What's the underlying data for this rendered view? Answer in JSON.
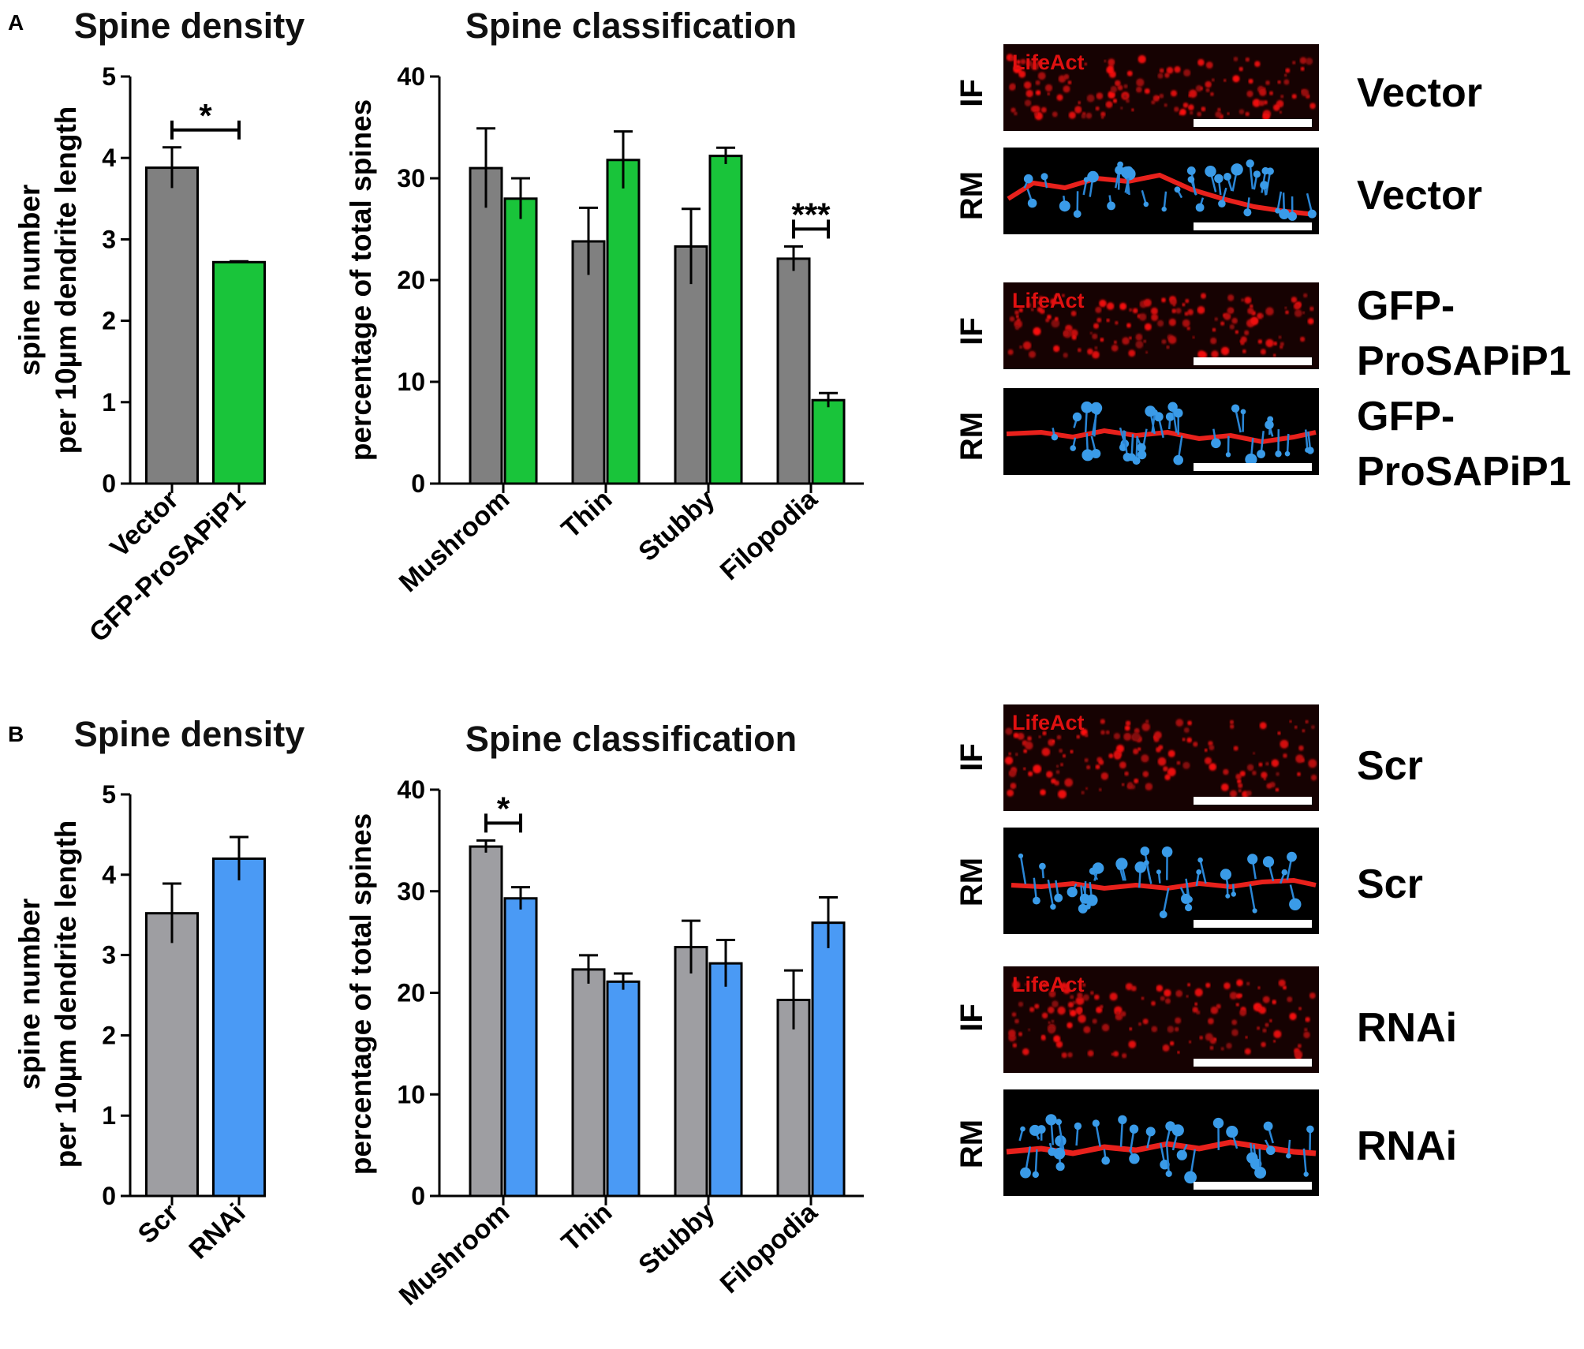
{
  "chart_data": [
    {
      "panel": "A",
      "type": "bar",
      "title": "Spine density",
      "xlabel": "",
      "ylabel": "spine number per 10µm dendrite length",
      "ylabel_lines": [
        "spine number",
        "per 10µm dendrite length"
      ],
      "ylim": [
        0,
        5
      ],
      "yticks": [
        "0",
        "1",
        "2",
        "3",
        "4",
        "5"
      ],
      "categories": [
        "Vector",
        "GFP-ProSAPiP1"
      ],
      "values": [
        3.88,
        2.72
      ],
      "errors": [
        0.25,
        0.01
      ],
      "colors": [
        "#808080",
        "#19c43a"
      ],
      "significance": [
        {
          "from": 0,
          "to": 1,
          "label": "*"
        }
      ]
    },
    {
      "panel": "A",
      "type": "bar",
      "title": "Spine classification",
      "xlabel": "",
      "ylabel": "percentage of total spines",
      "ylim": [
        0,
        40
      ],
      "yticks": [
        "0",
        "10",
        "20",
        "30",
        "40"
      ],
      "categories": [
        "Mushroom",
        "Thin",
        "Stubby",
        "Filopodia"
      ],
      "series": [
        {
          "name": "Vector",
          "values": [
            31.0,
            23.8,
            23.3,
            22.1
          ],
          "errors": [
            3.9,
            3.3,
            3.7,
            1.2
          ],
          "color": "#808080"
        },
        {
          "name": "GFP-ProSAPiP1",
          "values": [
            28.0,
            31.8,
            32.2,
            8.2
          ],
          "errors": [
            2.0,
            2.8,
            0.8,
            0.7
          ],
          "color": "#19c43a"
        }
      ],
      "significance": [
        {
          "category": 3,
          "label": "***"
        }
      ]
    },
    {
      "panel": "B",
      "type": "bar",
      "title": "Spine density",
      "xlabel": "",
      "ylabel": "spine number per 10µm dendrite length",
      "ylabel_lines": [
        "spine number",
        "per 10µm dendrite length"
      ],
      "ylim": [
        0,
        5
      ],
      "yticks": [
        "0",
        "1",
        "2",
        "3",
        "4",
        "5"
      ],
      "categories": [
        "Scr",
        "RNAi"
      ],
      "values": [
        3.52,
        4.2
      ],
      "errors": [
        0.37,
        0.27
      ],
      "colors": [
        "#9e9ea2",
        "#4a9af5"
      ],
      "significance": []
    },
    {
      "panel": "B",
      "type": "bar",
      "title": "Spine classification",
      "xlabel": "",
      "ylabel": "percentage of total spines",
      "ylim": [
        0,
        40
      ],
      "yticks": [
        "0",
        "10",
        "20",
        "30",
        "40"
      ],
      "categories": [
        "Mushroom",
        "Thin",
        "Stubby",
        "Filopodia"
      ],
      "series": [
        {
          "name": "Scr",
          "values": [
            34.4,
            22.3,
            24.5,
            19.3
          ],
          "errors": [
            0.6,
            1.4,
            2.6,
            2.9
          ],
          "color": "#9e9ea2"
        },
        {
          "name": "RNAi",
          "values": [
            29.3,
            21.1,
            22.9,
            26.9
          ],
          "errors": [
            1.1,
            0.8,
            2.3,
            2.5
          ],
          "color": "#4a9af5"
        }
      ],
      "significance": [
        {
          "category": 0,
          "label": "*"
        }
      ]
    }
  ],
  "panel_labels": {
    "a": "A",
    "b": "B"
  },
  "micrographs": {
    "lifeact_label": "LifeAct",
    "row_labels": {
      "if": "IF",
      "rm": "RM"
    },
    "panel_a_conditions": {
      "row1": "Vector",
      "row2": "Vector",
      "row3": [
        "GFP-",
        "ProSAPiP1"
      ],
      "row4": [
        "GFP-",
        "ProSAPiP1"
      ]
    },
    "panel_b_conditions": {
      "row1": "Scr",
      "row2": "Scr",
      "row3": "RNAi",
      "row4": "RNAi"
    }
  }
}
